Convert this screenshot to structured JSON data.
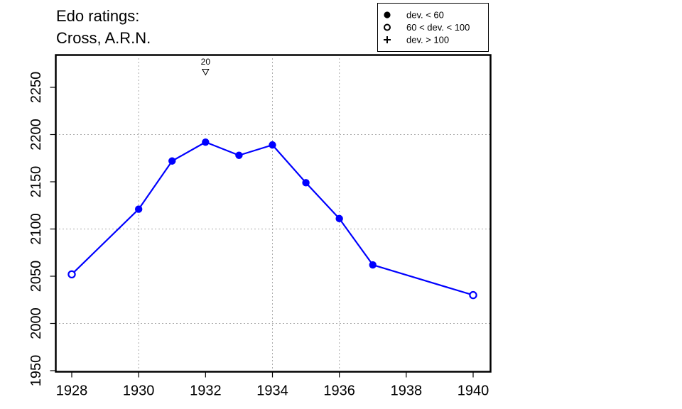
{
  "chart_data": {
    "type": "line",
    "title_lines": [
      "Edo ratings:",
      "Cross, A.R.N."
    ],
    "xlabel": "",
    "ylabel": "",
    "xlim": [
      1927.5,
      1940.5
    ],
    "ylim": [
      1945,
      2282
    ],
    "x_ticks": [
      1928,
      1930,
      1932,
      1934,
      1936,
      1938,
      1940
    ],
    "y_ticks": [
      1950,
      2000,
      2050,
      2100,
      2150,
      2200,
      2250
    ],
    "x_grid": [
      1930,
      1934,
      1936
    ],
    "y_grid": [
      2000,
      2100,
      2200
    ],
    "grid": true,
    "series": [
      {
        "color": "#0000ff",
        "points": [
          {
            "x": 1928,
            "y": 2052,
            "marker": "open"
          },
          {
            "x": 1930,
            "y": 2121,
            "marker": "filled"
          },
          {
            "x": 1931,
            "y": 2172,
            "marker": "filled"
          },
          {
            "x": 1932,
            "y": 2192,
            "marker": "filled"
          },
          {
            "x": 1933,
            "y": 2178,
            "marker": "filled"
          },
          {
            "x": 1934,
            "y": 2189,
            "marker": "filled"
          },
          {
            "x": 1935,
            "y": 2149,
            "marker": "filled"
          },
          {
            "x": 1936,
            "y": 2111,
            "marker": "filled"
          },
          {
            "x": 1937,
            "y": 2062,
            "marker": "filled"
          },
          {
            "x": 1940,
            "y": 2030,
            "marker": "open"
          }
        ]
      }
    ],
    "annotations": [
      {
        "x": 1932,
        "label": "20",
        "symbol": "down-triangle"
      }
    ],
    "legend": {
      "position": "top-right",
      "entries": [
        {
          "symbol": "filled-circle",
          "label": "dev. < 60"
        },
        {
          "symbol": "open-circle",
          "label": "60 < dev. < 100"
        },
        {
          "symbol": "plus",
          "label": "dev. > 100"
        }
      ]
    }
  }
}
